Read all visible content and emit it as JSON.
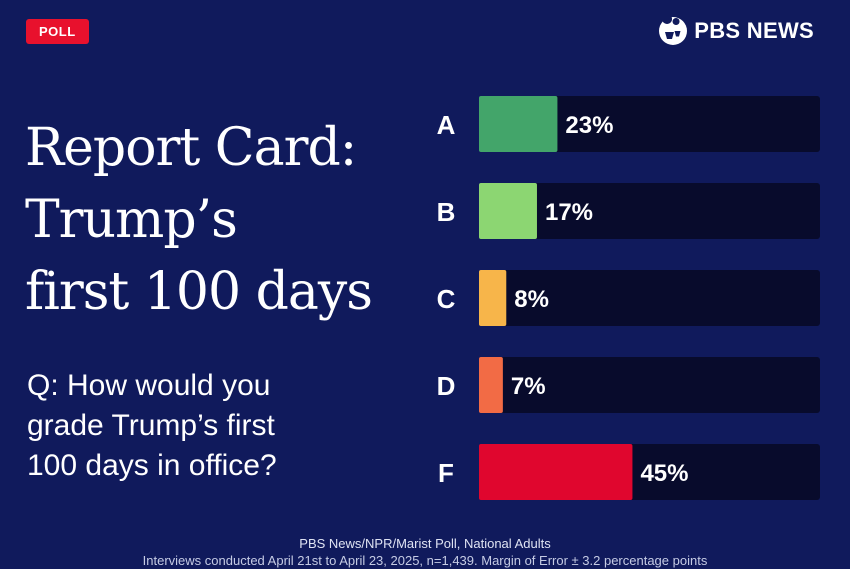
{
  "badge": "POLL",
  "brand": {
    "name": "PBS NEWS",
    "logo_icon": "pbs-heads-logo-icon"
  },
  "title_lines": [
    "Report Card:",
    "Trump’s",
    "first 100 days"
  ],
  "question_lines": [
    "Q: How would you",
    "grade Trump’s first",
    "100 days in office?"
  ],
  "footer": {
    "source": "PBS News/NPR/Marist Poll, National Adults",
    "methodology": "Interviews conducted April 21st to April 23, 2025, n=1,439. Margin of Error ± 3.2 percentage points"
  },
  "colors": {
    "background": "#101a5c",
    "track": "#080b2c",
    "accent_red": "#e8112d"
  },
  "chart_data": {
    "type": "bar",
    "orientation": "horizontal",
    "title": "Report Card: Trump’s first 100 days",
    "categories": [
      "A",
      "B",
      "C",
      "D",
      "F"
    ],
    "values": [
      23,
      17,
      8,
      7,
      45
    ],
    "value_labels": [
      "23%",
      "17%",
      "8%",
      "7%",
      "45%"
    ],
    "bar_colors": [
      "#43a56a",
      "#8cd672",
      "#f7b54a",
      "#f26b45",
      "#e0062e"
    ],
    "xlim": [
      0,
      100
    ],
    "unit": "%",
    "legend": "none",
    "grid": false
  }
}
